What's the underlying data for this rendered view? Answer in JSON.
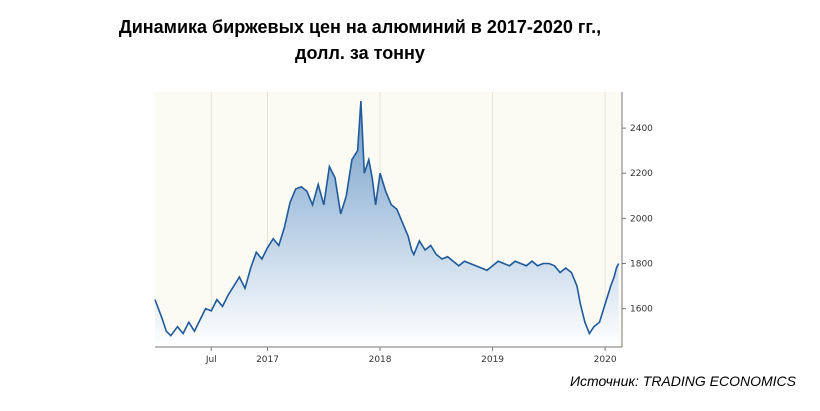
{
  "chart_data": {
    "type": "area",
    "title_line1": "Динамика биржевых цен на алюминий в 2017-2020 гг.,",
    "title_line2": "долл. за тонну",
    "source": "Источник: TRADING ECONOMICS",
    "xlabel": "",
    "ylabel": "",
    "x_ticks": [
      {
        "label": "Jul",
        "t": 2016.5
      },
      {
        "label": "2017",
        "t": 2017.0
      },
      {
        "label": "2018",
        "t": 2018.0
      },
      {
        "label": "2019",
        "t": 2019.0
      },
      {
        "label": "2020",
        "t": 2020.0
      }
    ],
    "y_ticks": [
      1600,
      1800,
      2000,
      2200,
      2400
    ],
    "xlim": [
      2016.0,
      2020.15
    ],
    "ylim": [
      1430,
      2560
    ],
    "grid": true,
    "colors": {
      "line": "#1f5a9a",
      "fill_top": "#6f9cc9",
      "fill_bottom": "#ffffff",
      "plot_bg": "#fcfbf3"
    },
    "series": [
      {
        "x": [
          2016.0,
          2016.03,
          2016.06,
          2016.1,
          2016.14,
          2016.2,
          2016.25,
          2016.3,
          2016.35,
          2016.4,
          2016.45,
          2016.5,
          2016.55,
          2016.6,
          2016.65,
          2016.7,
          2016.75,
          2016.8,
          2016.85,
          2016.9,
          2016.95,
          2017.0,
          2017.05,
          2017.1,
          2017.15,
          2017.2,
          2017.25,
          2017.3,
          2017.35,
          2017.4,
          2017.45,
          2017.5,
          2017.55,
          2017.6,
          2017.65,
          2017.7,
          2017.75,
          2017.8,
          2017.83,
          2017.86,
          2017.9,
          2017.93,
          2017.96,
          2018.0,
          2018.05,
          2018.1,
          2018.15,
          2018.2,
          2018.25,
          2018.28,
          2018.3,
          2018.35,
          2018.4,
          2018.45,
          2018.5,
          2018.55,
          2018.6,
          2018.65,
          2018.7,
          2018.75,
          2018.8,
          2018.85,
          2018.9,
          2018.95,
          2019.0,
          2019.05,
          2019.1,
          2019.15,
          2019.2,
          2019.25,
          2019.3,
          2019.35,
          2019.4,
          2019.45,
          2019.5,
          2019.55,
          2019.6,
          2019.65,
          2019.7,
          2019.75,
          2019.78,
          2019.82,
          2019.86,
          2019.9,
          2019.95,
          2020.0,
          2020.05,
          2020.08,
          2020.1,
          2020.12
        ],
        "y": [
          1640,
          1600,
          1560,
          1500,
          1480,
          1520,
          1490,
          1540,
          1500,
          1550,
          1600,
          1590,
          1640,
          1610,
          1660,
          1700,
          1740,
          1690,
          1780,
          1850,
          1820,
          1870,
          1910,
          1880,
          1960,
          2070,
          2130,
          2140,
          2120,
          2060,
          2150,
          2060,
          2230,
          2180,
          2020,
          2100,
          2260,
          2300,
          2520,
          2200,
          2260,
          2180,
          2060,
          2200,
          2120,
          2060,
          2040,
          1980,
          1920,
          1860,
          1840,
          1900,
          1860,
          1880,
          1840,
          1820,
          1830,
          1810,
          1790,
          1810,
          1800,
          1790,
          1780,
          1770,
          1790,
          1810,
          1800,
          1790,
          1810,
          1800,
          1790,
          1810,
          1790,
          1800,
          1800,
          1790,
          1760,
          1780,
          1760,
          1700,
          1620,
          1540,
          1490,
          1520,
          1540,
          1620,
          1700,
          1740,
          1780,
          1800
        ]
      }
    ]
  }
}
